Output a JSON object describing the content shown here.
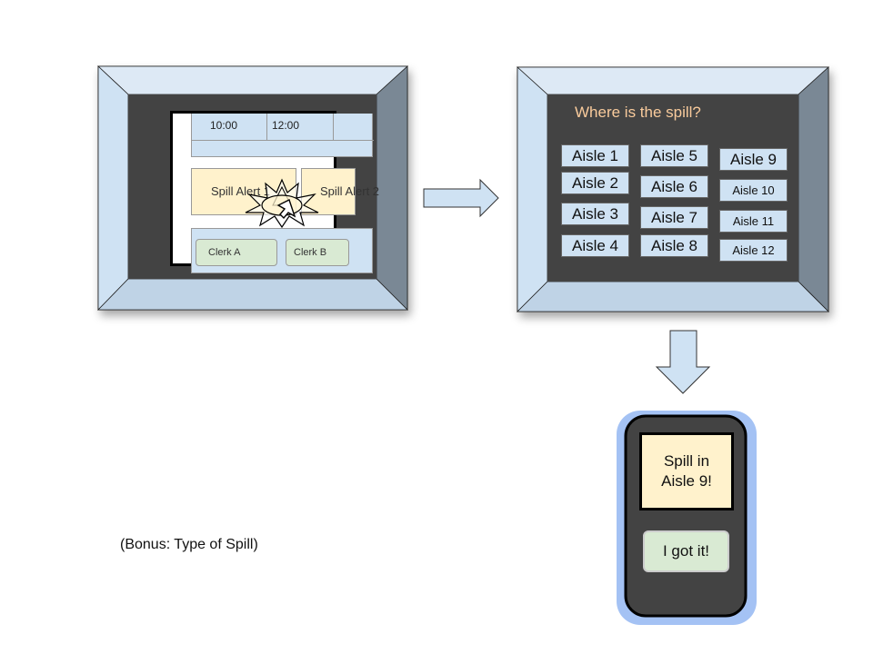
{
  "screen1": {
    "times": [
      "10:00",
      "12:00"
    ],
    "alerts": [
      "Spill Alert 1",
      "Spill Alert 2"
    ],
    "clerks": [
      "Clerk A",
      "Clerk B"
    ]
  },
  "screen2": {
    "prompt": "Where is the spill?",
    "aisles": [
      "Aisle 1",
      "Aisle 2",
      "Aisle 3",
      "Aisle 4",
      "Aisle 5",
      "Aisle 6",
      "Aisle 7",
      "Aisle 8",
      "Aisle 9",
      "Aisle 10",
      "Aisle 11",
      "Aisle 12"
    ]
  },
  "phone": {
    "message_line1": "Spill in",
    "message_line2": "Aisle 9!",
    "ack_button": "I got it!"
  },
  "bonus_note": "(Bonus: Type of Spill)",
  "colors": {
    "bezel_light": "#cfe2f3",
    "bezel_dark": "#6f7f8f",
    "screen_bg": "#434343",
    "alert_fill": "#fff2cc",
    "clerk_fill": "#d9ead3",
    "prompt_text": "#f9cb9c",
    "phone_outer": "#a4c2f4"
  },
  "icons": [
    "arrow-right-icon",
    "arrow-down-icon",
    "touch-burst-icon",
    "cursor-icon"
  ]
}
